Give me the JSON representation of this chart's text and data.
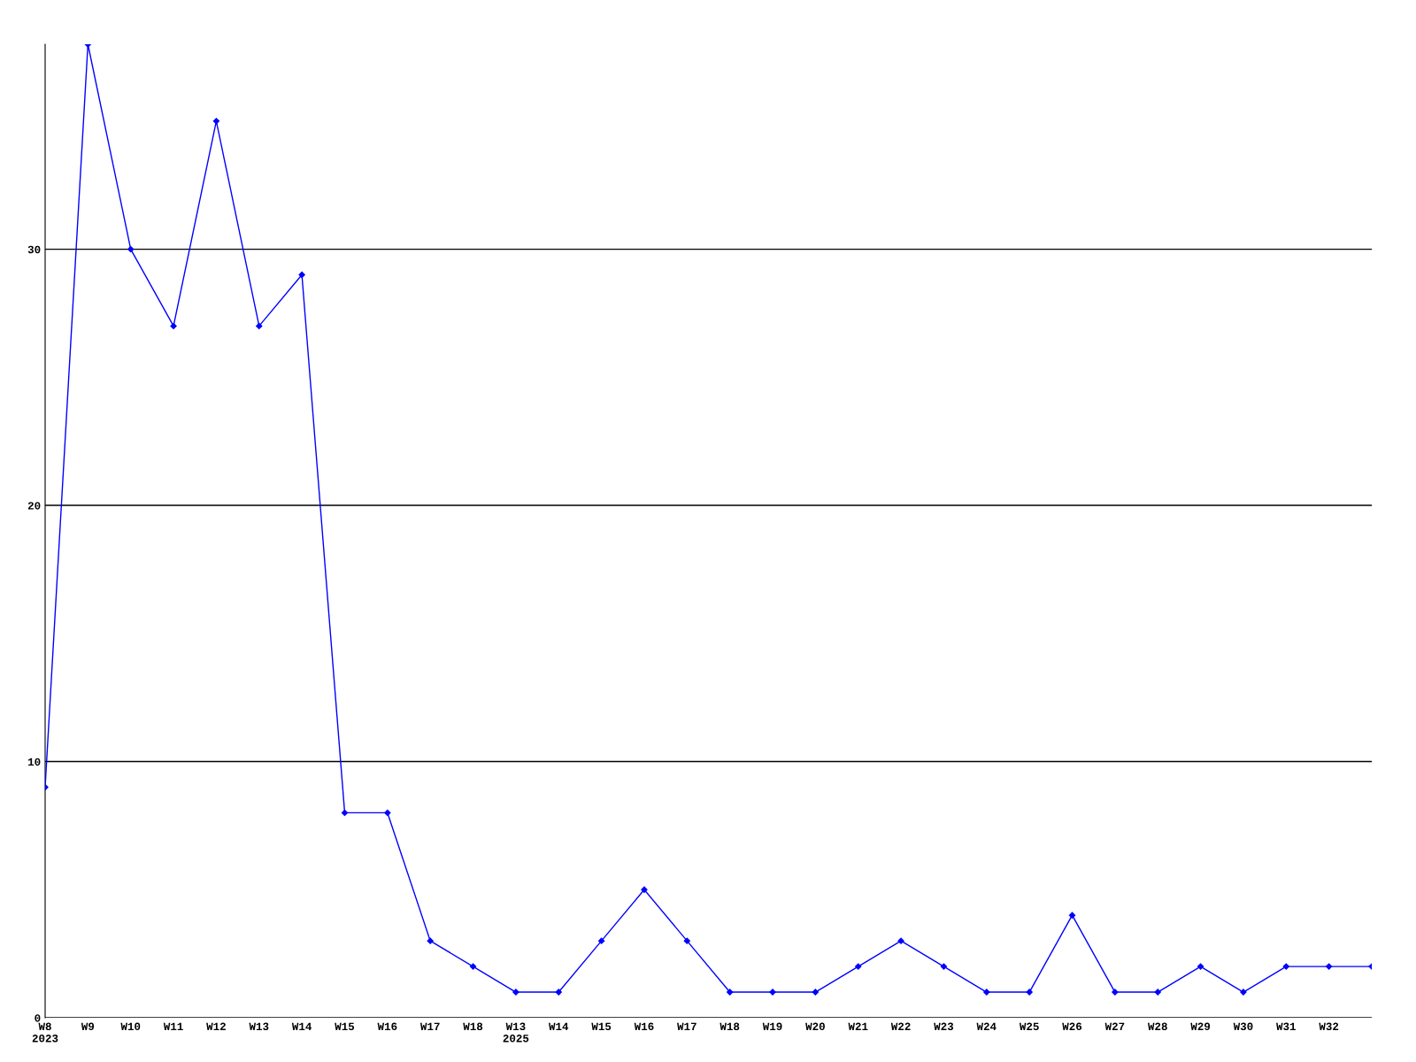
{
  "chart_data": {
    "type": "line",
    "categories": [
      "W8\n2023",
      "W9",
      "W10",
      "W11",
      "W12",
      "W13",
      "W14",
      "W15",
      "W16",
      "W17",
      "W18",
      "W13\n2025",
      "W14",
      "W15",
      "W16",
      "W17",
      "W18",
      "W19",
      "W20",
      "W21",
      "W22",
      "W23",
      "W24",
      "W25",
      "W26",
      "W27",
      "W28",
      "W29",
      "W30",
      "W31",
      "W32",
      null
    ],
    "series": [
      {
        "color": "#0000ff",
        "values": [
          9,
          38,
          30,
          27,
          35,
          27,
          29,
          8,
          8,
          3,
          2,
          1,
          1,
          3,
          5,
          3,
          1,
          1,
          1,
          2,
          3,
          2,
          1,
          1,
          4,
          1,
          1,
          2,
          1,
          2,
          2,
          2
        ]
      }
    ],
    "ylim": [
      0,
      38
    ],
    "yticks": [
      0,
      10,
      20,
      30
    ],
    "grid": "y",
    "marker": "diamond",
    "line_style": "solid",
    "legend": false
  }
}
